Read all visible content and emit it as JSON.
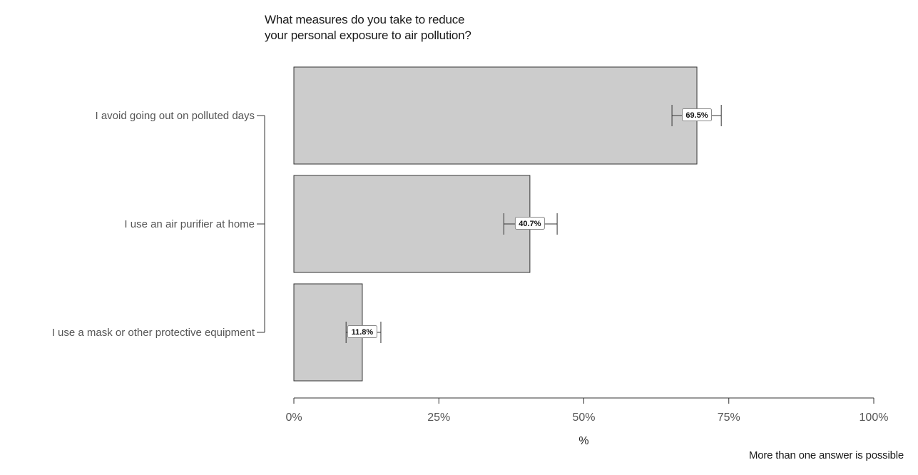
{
  "chart_data": {
    "type": "bar",
    "orientation": "horizontal",
    "title_lines": [
      "What measures do you take to reduce",
      "your personal exposure to air pollution?"
    ],
    "categories": [
      "I avoid going out on polluted days",
      "I use an air purifier at home",
      "I use a mask or other protective equipment"
    ],
    "values": [
      69.5,
      40.7,
      11.8
    ],
    "error_bars": [
      {
        "low": 65.2,
        "high": 73.7
      },
      {
        "low": 36.2,
        "high": 45.4
      },
      {
        "low": 9.0,
        "high": 15.0
      }
    ],
    "value_labels": [
      "69.5%",
      "40.7%",
      "11.8%"
    ],
    "xlabel": "%",
    "xlim": [
      0,
      100
    ],
    "xticks": [
      0,
      25,
      50,
      75,
      100
    ],
    "xtick_labels": [
      "0%",
      "25%",
      "50%",
      "75%",
      "100%"
    ],
    "grid": false,
    "bar_color": "#cccccc",
    "bar_stroke": "#333333"
  },
  "footnote": "More than one answer is possible"
}
